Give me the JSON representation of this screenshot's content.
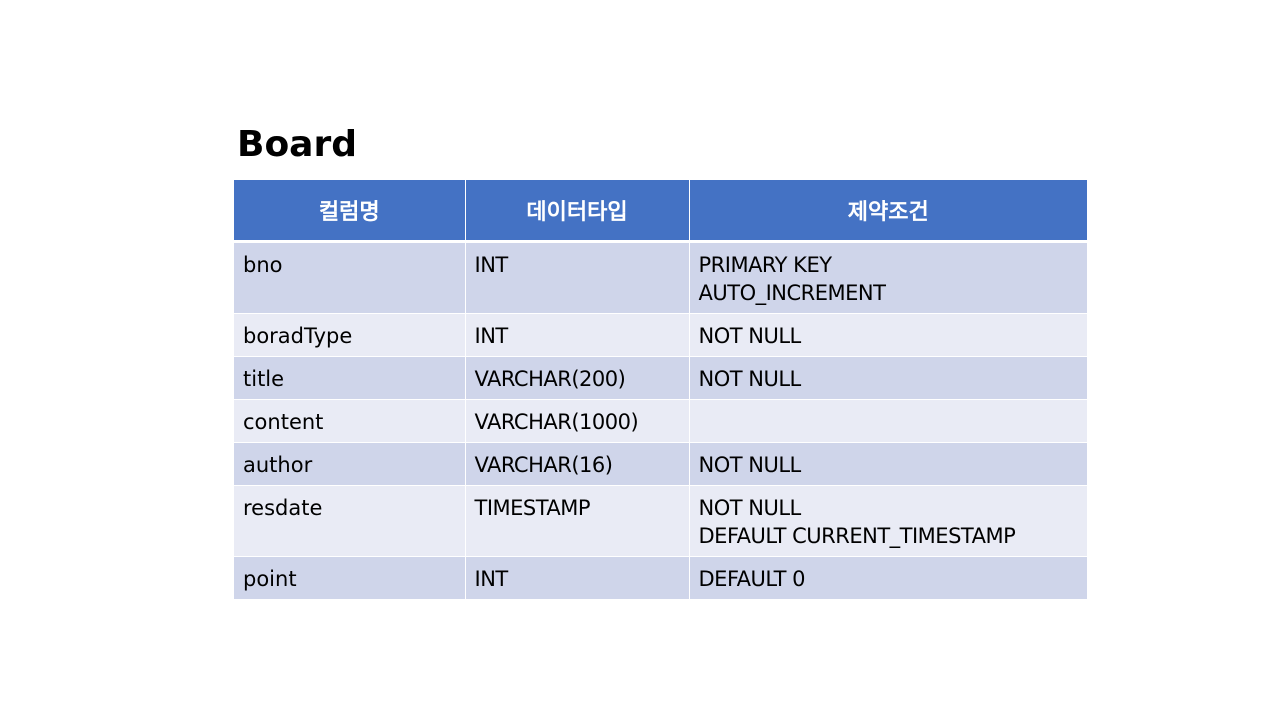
{
  "title": "Board",
  "table": {
    "headers": [
      "컬럼명",
      "데이터타입",
      "제약조건"
    ],
    "rows": [
      {
        "column": "bno",
        "type": "INT",
        "constraints": [
          "PRIMARY KEY",
          "AUTO_INCREMENT"
        ]
      },
      {
        "column": "boradType",
        "type": "INT",
        "constraints": [
          "NOT NULL"
        ]
      },
      {
        "column": "title",
        "type": "VARCHAR(200)",
        "constraints": [
          "NOT NULL"
        ]
      },
      {
        "column": "content",
        "type": "VARCHAR(1000)",
        "constraints": []
      },
      {
        "column": "author",
        "type": "VARCHAR(16)",
        "constraints": [
          "NOT NULL"
        ]
      },
      {
        "column": "resdate",
        "type": "TIMESTAMP",
        "constraints": [
          "NOT NULL",
          "DEFAULT CURRENT_TIMESTAMP"
        ]
      },
      {
        "column": "point",
        "type": "INT",
        "constraints": [
          "DEFAULT 0"
        ]
      }
    ]
  },
  "colors": {
    "header_bg": "#4472c4",
    "row_odd_bg": "#cfd5ea",
    "row_even_bg": "#e9ebf5"
  }
}
